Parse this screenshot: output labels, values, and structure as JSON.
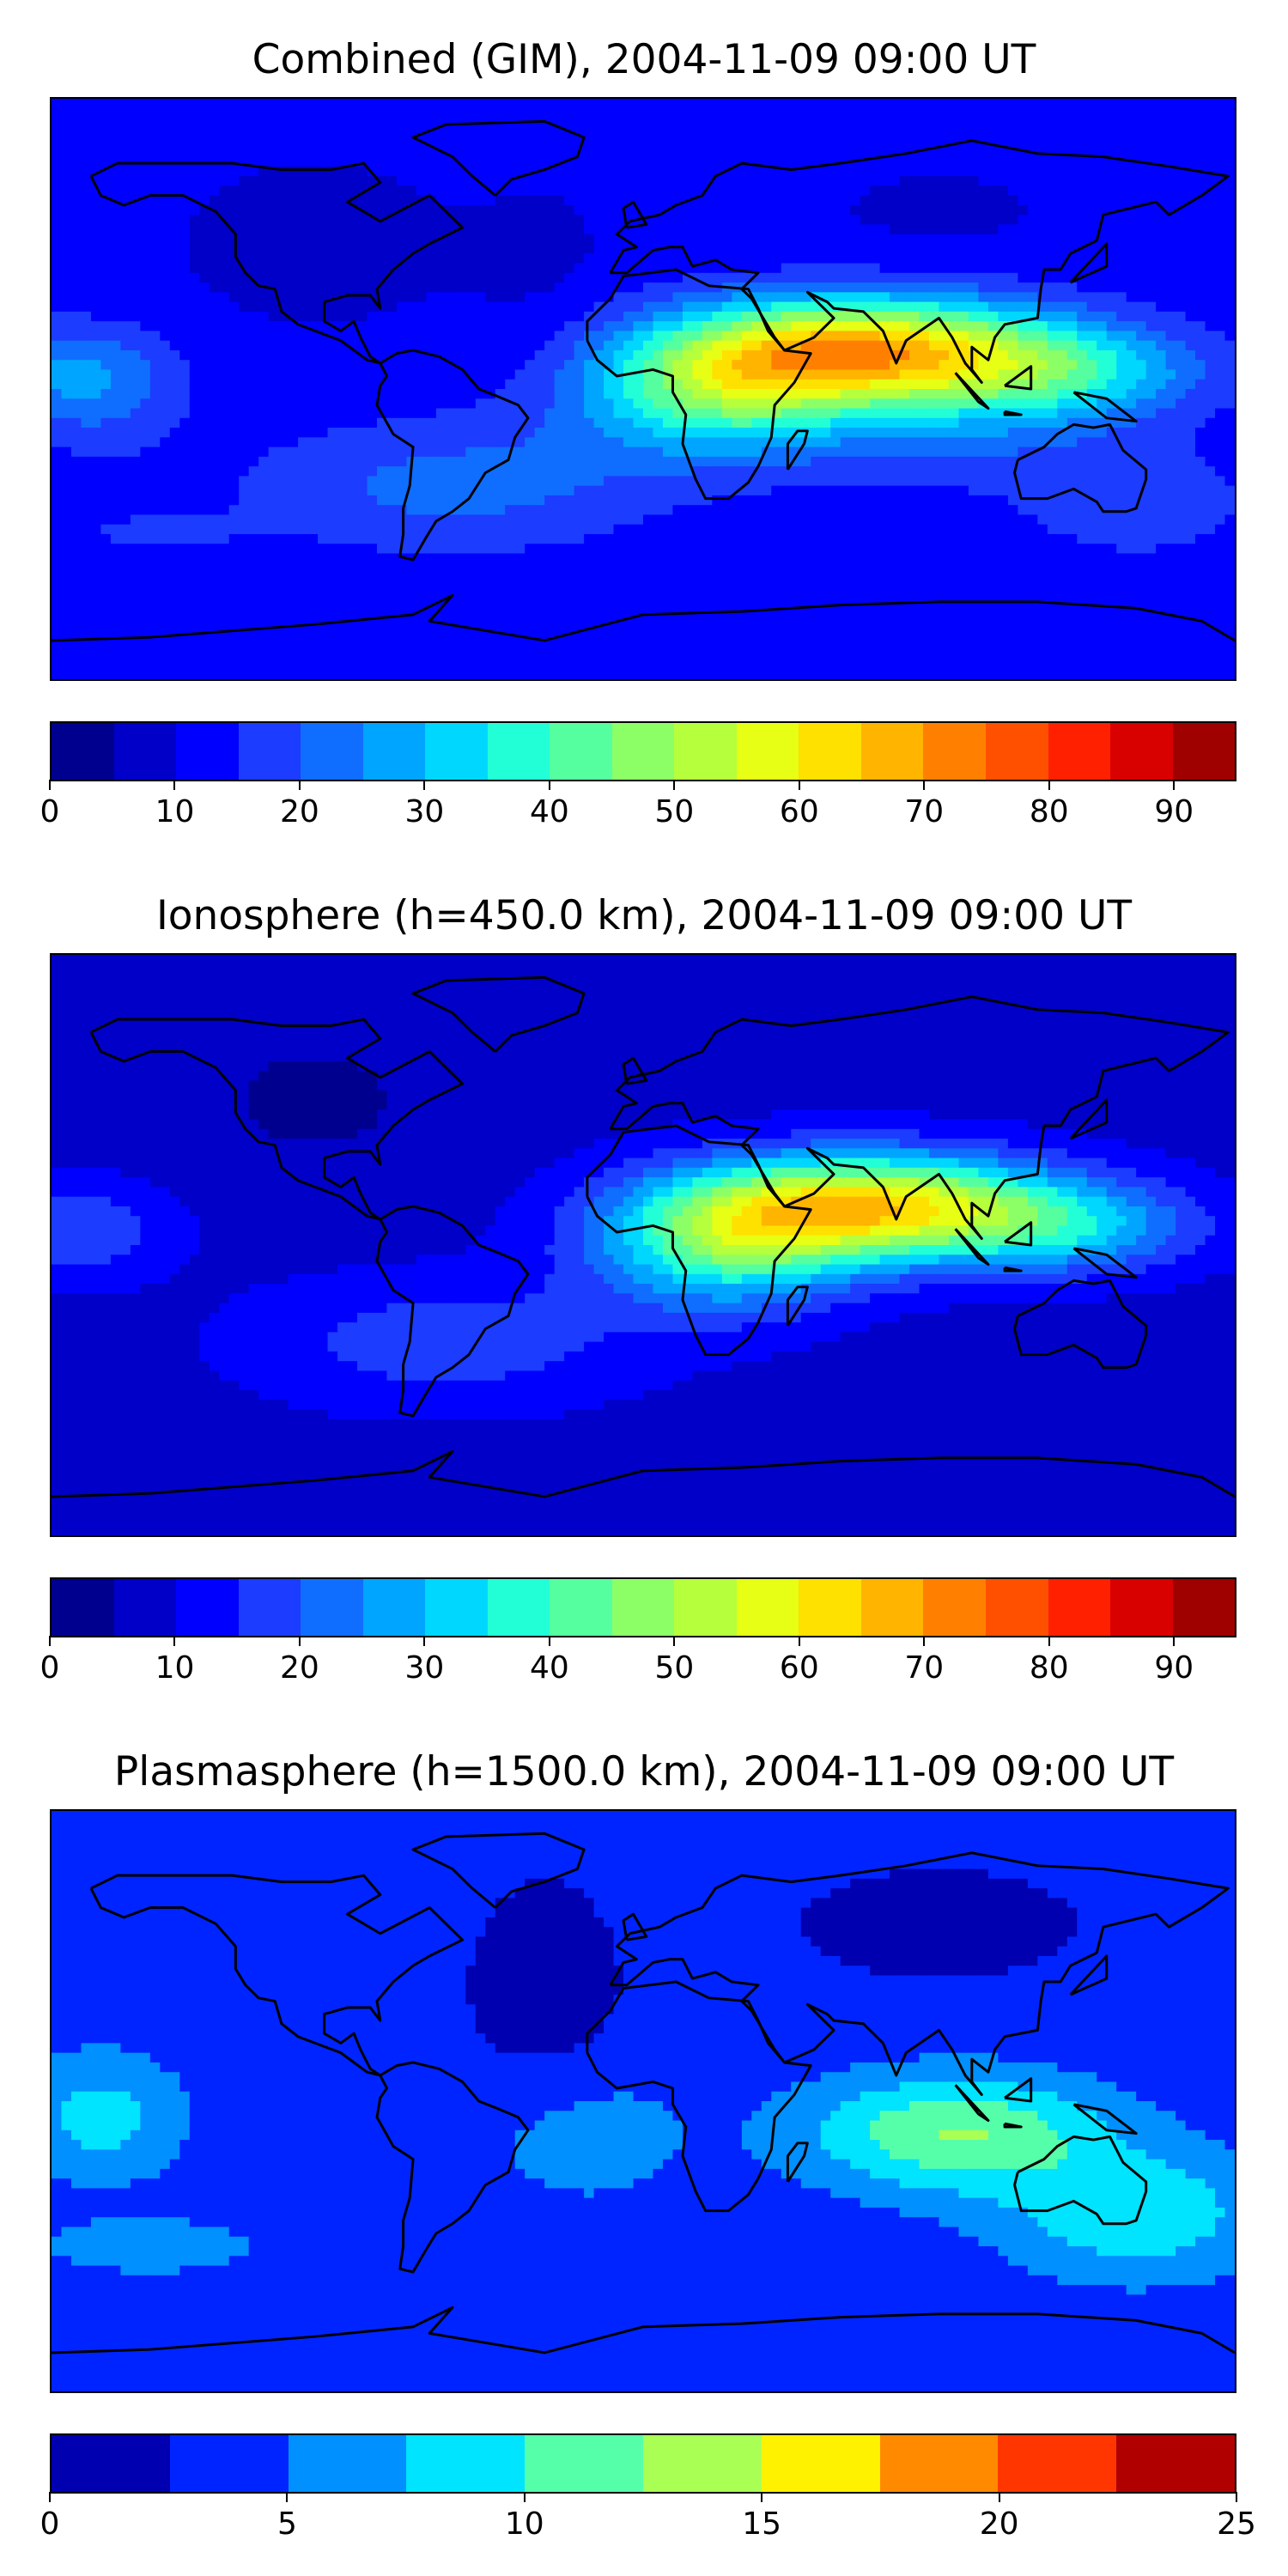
{
  "panels": [
    {
      "title": "Combined (GIM), 2004-11-09 09:00 UT",
      "levels_min": 0,
      "levels_max": 95,
      "levels_step": 5,
      "colors": [
        "#00008f",
        "#0000c8",
        "#0000ff",
        "#1c3cff",
        "#0f6eff",
        "#00a5ff",
        "#00d7ff",
        "#22ffd6",
        "#55ff9f",
        "#8cff66",
        "#b6ff3c",
        "#e6ff14",
        "#ffe100",
        "#ffb400",
        "#ff8000",
        "#ff5000",
        "#ff2000",
        "#d90000",
        "#9f0000"
      ],
      "ticks": [
        "0",
        "10",
        "20",
        "30",
        "40",
        "50",
        "60",
        "70",
        "80",
        "90"
      ],
      "tick_values": [
        0,
        10,
        20,
        30,
        40,
        50,
        60,
        70,
        80,
        90
      ],
      "field": "combined"
    },
    {
      "title": "Ionosphere  (h=450.0 km), 2004-11-09 09:00 UT",
      "levels_min": 0,
      "levels_max": 95,
      "levels_step": 5,
      "colors": [
        "#00008f",
        "#0000c8",
        "#0000ff",
        "#1c3cff",
        "#0f6eff",
        "#00a5ff",
        "#00d7ff",
        "#22ffd6",
        "#55ff9f",
        "#8cff66",
        "#b6ff3c",
        "#e6ff14",
        "#ffe100",
        "#ffb400",
        "#ff8000",
        "#ff5000",
        "#ff2000",
        "#d90000",
        "#9f0000"
      ],
      "ticks": [
        "0",
        "10",
        "20",
        "30",
        "40",
        "50",
        "60",
        "70",
        "80",
        "90"
      ],
      "tick_values": [
        0,
        10,
        20,
        30,
        40,
        50,
        60,
        70,
        80,
        90
      ],
      "field": "ionosphere"
    },
    {
      "title": "Plasmasphere (h=1500.0 km), 2004-11-09 09:00 UT",
      "levels_min": 0,
      "levels_max": 25,
      "levels_step": 2.5,
      "colors": [
        "#0000b0",
        "#0024ff",
        "#0090ff",
        "#00e4ff",
        "#55ffaa",
        "#aaff55",
        "#fff200",
        "#ff8a00",
        "#ff3600",
        "#b00000"
      ],
      "ticks": [
        "0",
        "5",
        "10",
        "15",
        "20",
        "25"
      ],
      "tick_values": [
        0,
        5,
        10,
        15,
        20,
        25
      ],
      "field": "plasmasphere"
    }
  ]
}
